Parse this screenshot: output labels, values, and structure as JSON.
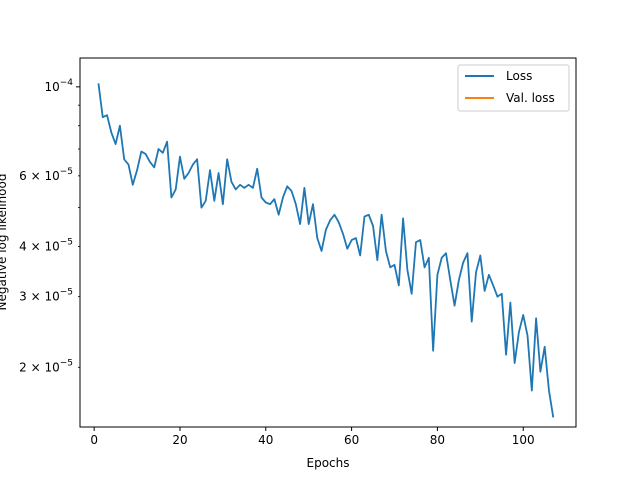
{
  "chart_data": {
    "type": "line",
    "xlabel": "Epochs",
    "ylabel": "Negative log likelihood",
    "yscale": "log",
    "xlim": [
      -3.3,
      112.3
    ],
    "ylim": [
      1.42e-05,
      0.000118
    ],
    "grid": false,
    "legend_position": "upper right",
    "x_ticks": [
      0,
      20,
      40,
      60,
      80,
      100
    ],
    "y_major_ticks": [
      {
        "value": 0.0001,
        "label": "10",
        "exp": "−4"
      }
    ],
    "y_minor_ticks": [
      {
        "value": 6e-05,
        "mant": "6 × 10",
        "exp": "−5"
      },
      {
        "value": 4e-05,
        "mant": "4 × 10",
        "exp": "−5"
      },
      {
        "value": 3e-05,
        "mant": "3 × 10",
        "exp": "−5"
      },
      {
        "value": 2e-05,
        "mant": "2 × 10",
        "exp": "−5"
      }
    ],
    "series": [
      {
        "name": "Loss",
        "color": "#1f77b4",
        "x": [
          1,
          2,
          3,
          4,
          5,
          6,
          7,
          8,
          9,
          10,
          11,
          12,
          13,
          14,
          15,
          16,
          17,
          18,
          19,
          20,
          21,
          22,
          23,
          24,
          25,
          26,
          27,
          28,
          29,
          30,
          31,
          32,
          33,
          34,
          35,
          36,
          37,
          38,
          39,
          40,
          41,
          42,
          43,
          44,
          45,
          46,
          47,
          48,
          49,
          50,
          51,
          52,
          53,
          54,
          55,
          56,
          57,
          58,
          59,
          60,
          61,
          62,
          63,
          64,
          65,
          66,
          67,
          68,
          69,
          70,
          71,
          72,
          73,
          74,
          75,
          76,
          77,
          78,
          79,
          80,
          81,
          82,
          83,
          84,
          85,
          86,
          87,
          88,
          89,
          90,
          91,
          92,
          93,
          94,
          95,
          96,
          97,
          98,
          99,
          100,
          101,
          102,
          103,
          104,
          105,
          106,
          107
        ],
        "values": [
          0.000102,
          8.4e-05,
          8.5e-05,
          7.7e-05,
          7.2e-05,
          8e-05,
          6.6e-05,
          6.4e-05,
          5.7e-05,
          6.2e-05,
          6.9e-05,
          6.8e-05,
          6.5e-05,
          6.3e-05,
          7e-05,
          6.85e-05,
          7.3e-05,
          5.3e-05,
          5.55e-05,
          6.7e-05,
          5.9e-05,
          6.1e-05,
          6.4e-05,
          6.6e-05,
          5e-05,
          5.2e-05,
          6.2e-05,
          5.2e-05,
          6.1e-05,
          5.1e-05,
          6.6e-05,
          5.8e-05,
          5.55e-05,
          5.7e-05,
          5.6e-05,
          5.7e-05,
          5.6e-05,
          6.25e-05,
          5.3e-05,
          5.15e-05,
          5.1e-05,
          5.25e-05,
          4.8e-05,
          5.3e-05,
          5.65e-05,
          5.5e-05,
          5.1e-05,
          4.55e-05,
          5.6e-05,
          4.55e-05,
          5.1e-05,
          4.2e-05,
          3.9e-05,
          4.4e-05,
          4.65e-05,
          4.8e-05,
          4.6e-05,
          4.3e-05,
          3.95e-05,
          4.15e-05,
          4.2e-05,
          3.8e-05,
          4.75e-05,
          4.8e-05,
          4.5e-05,
          3.7e-05,
          4.8e-05,
          3.9e-05,
          3.55e-05,
          3.6e-05,
          3.2e-05,
          4.7e-05,
          3.5e-05,
          3.05e-05,
          4.1e-05,
          4.15e-05,
          3.55e-05,
          3.75e-05,
          2.2e-05,
          3.4e-05,
          3.75e-05,
          3.85e-05,
          3.3e-05,
          2.85e-05,
          3.3e-05,
          3.65e-05,
          3.85e-05,
          2.6e-05,
          3.45e-05,
          3.8e-05,
          3.1e-05,
          3.4e-05,
          3.2e-05,
          3e-05,
          3.05e-05,
          2.15e-05,
          2.9e-05,
          2.05e-05,
          2.45e-05,
          2.7e-05,
          2.4e-05,
          1.75e-05,
          2.65e-05,
          1.95e-05,
          2.25e-05,
          1.75e-05,
          1.5e-05
        ]
      },
      {
        "name": "Val. loss",
        "color": "#ff7f0e",
        "x": [],
        "values": []
      }
    ]
  }
}
